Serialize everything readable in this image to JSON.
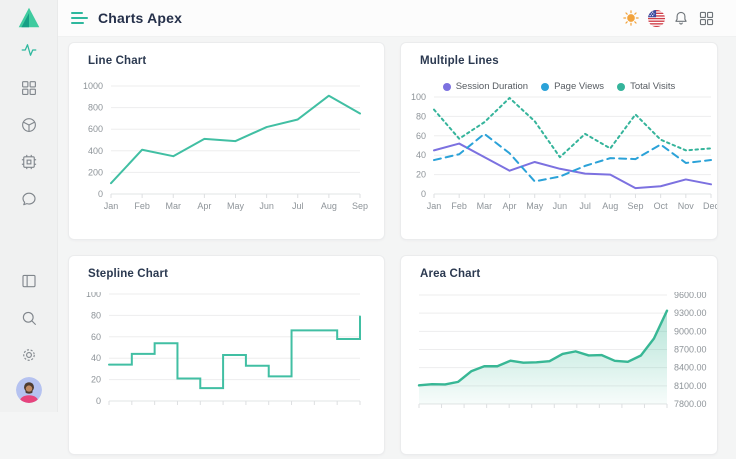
{
  "header": {
    "title": "Charts Apex",
    "menu_icon": "hamburger-icon",
    "action_icons": [
      "sun-icon",
      "us-flag-icon",
      "bell-icon",
      "apps-icon"
    ]
  },
  "sidebar": {
    "logo_icon": "triangle-logo",
    "nav_icons": [
      "activity-icon",
      "grid-icon",
      "package-icon",
      "cpu-icon",
      "chat-icon"
    ],
    "footer_icons": [
      "layout-icon",
      "search-icon",
      "settings-icon"
    ],
    "avatar": "user-avatar",
    "active_icon": "activity-icon"
  },
  "theme": {
    "accent": "#2eb89e",
    "sun_yellow": "#f2a33c",
    "title_color": "#25304a"
  },
  "chart_data": [
    {
      "type": "line",
      "title": "Line Chart",
      "categories": [
        "Jan",
        "Feb",
        "Mar",
        "Apr",
        "May",
        "Jun",
        "Jul",
        "Aug",
        "Sep"
      ],
      "series": [
        {
          "values": [
            100,
            410,
            350,
            510,
            490,
            620,
            690,
            910,
            745
          ],
          "color": "#41bfa3",
          "dash": null
        }
      ],
      "ylim": [
        0,
        1000
      ],
      "yticks": [
        0,
        200,
        400,
        600,
        800,
        1000
      ],
      "y_side": "left",
      "x_labels": true,
      "legend": false,
      "grid": true
    },
    {
      "type": "line",
      "title": "Multiple Lines",
      "categories": [
        "Jan",
        "Feb",
        "Mar",
        "Apr",
        "May",
        "Jun",
        "Jul",
        "Aug",
        "Sep",
        "Oct",
        "Nov",
        "Dec"
      ],
      "series": [
        {
          "name": "Session Duration",
          "values": [
            45,
            52,
            38,
            24,
            33,
            26,
            21,
            20,
            6,
            8,
            15,
            10
          ],
          "color": "#7c71e0",
          "dash": null
        },
        {
          "name": "Page Views",
          "values": [
            35,
            41,
            62,
            42,
            13,
            18,
            29,
            37,
            36,
            51,
            32,
            35
          ],
          "color": "#2ba2d8",
          "dash": "7 5"
        },
        {
          "name": "Total Visits",
          "values": [
            87,
            57,
            74,
            99,
            75,
            38,
            62,
            47,
            82,
            56,
            45,
            47
          ],
          "color": "#35b49b",
          "dash": "2.5 3.5"
        }
      ],
      "ylim": [
        0,
        100
      ],
      "yticks": [
        0,
        20,
        40,
        60,
        80,
        100
      ],
      "y_side": "left",
      "x_labels": true,
      "legend": true,
      "grid": true
    },
    {
      "type": "stepline",
      "title": "Stepline Chart",
      "series": [
        {
          "values": [
            34,
            44,
            54,
            21,
            12,
            43,
            33,
            23,
            66,
            66,
            58,
            79
          ],
          "color": "#41bfa3",
          "dash": null
        }
      ],
      "ylim": [
        0,
        100
      ],
      "yticks": [
        0,
        20,
        40,
        60,
        80,
        100
      ],
      "y_side": "left",
      "x_labels": false,
      "legend": false,
      "grid": true
    },
    {
      "type": "area",
      "title": "Area Chart",
      "series": [
        {
          "values": [
            8107.85,
            8128.0,
            8122.9,
            8165.5,
            8340.7,
            8423.7,
            8423.5,
            8514.3,
            8481.85,
            8487.7,
            8506.9,
            8626.2,
            8668.95,
            8602.3,
            8607.55,
            8512.9,
            8496.25,
            8600.65,
            8881.1,
            9340.85
          ],
          "color": "#38b795",
          "dash": null
        }
      ],
      "ylim": [
        7800,
        9600
      ],
      "yticks": [
        7800,
        8100,
        8400,
        8700,
        9000,
        9300,
        9600
      ],
      "y_side": "right",
      "y_format": "fixed2",
      "x_labels": false,
      "legend": false,
      "grid": true
    }
  ]
}
